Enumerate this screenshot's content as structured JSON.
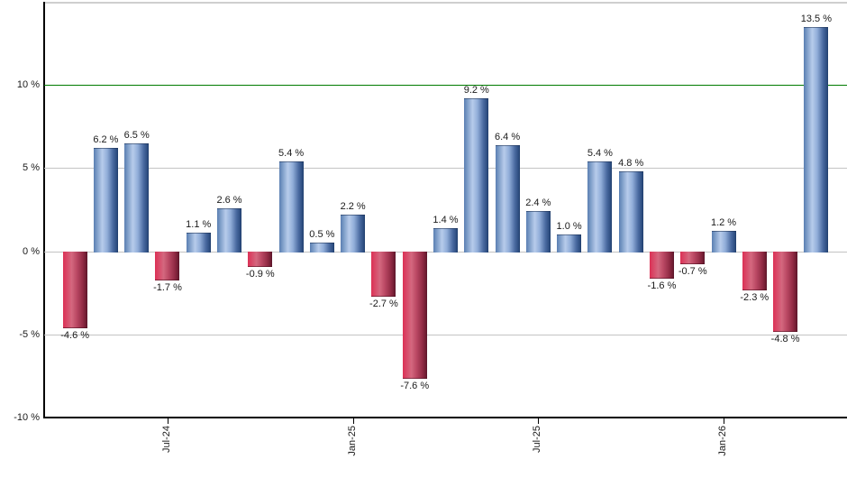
{
  "chart": {
    "background": "#ffffff",
    "colors": {
      "frame": "#cfcfcf",
      "axis": "#000000",
      "grid": "#c3c3c3",
      "reference_line": "#007a00",
      "positive_bar_base": "#6f94c4",
      "positive_bar_highlight": "#b7cceb",
      "positive_bar_dark": "#1d3a68",
      "negative_bar_base": "#c94a65",
      "negative_bar_highlight": "#d4687f",
      "negative_bar_dark": "#57142a",
      "label_text": "#1a1a1a"
    }
  },
  "chart_data": {
    "type": "bar",
    "title": "",
    "xlabel": "",
    "ylabel": "",
    "ylim": [
      -10,
      15
    ],
    "grid": "horizontal",
    "legend": "none",
    "values": [
      -4.6,
      6.2,
      6.5,
      -1.7,
      1.1,
      2.6,
      -0.9,
      5.4,
      0.5,
      2.2,
      -2.7,
      -7.6,
      1.4,
      9.2,
      6.4,
      2.4,
      1.0,
      5.4,
      4.8,
      -1.6,
      -0.7,
      1.2,
      -2.3,
      -4.8,
      13.5
    ],
    "labels": [
      "-4.6 %",
      "6.2 %",
      "6.5 %",
      "-1.7 %",
      "1.1 %",
      "2.6 %",
      "-0.9 %",
      "5.4 %",
      "0.5 %",
      "2.2 %",
      "-2.7 %",
      "-7.6 %",
      "1.4 %",
      "9.2 %",
      "6.4 %",
      "2.4 %",
      "1.0 %",
      "5.4 %",
      "4.8 %",
      "-1.6 %",
      "-0.7 %",
      "1.2 %",
      "-2.3 %",
      "-4.8 %",
      "13.5 %"
    ],
    "gridlines": [
      {
        "value": 10,
        "color": "#007a00"
      },
      {
        "value": 5,
        "color": "#c3c3c3"
      },
      {
        "value": 0,
        "color": "#c3c3c3"
      },
      {
        "value": -5,
        "color": "#c3c3c3"
      }
    ],
    "y_ticks": [
      {
        "value": 10,
        "label": "10 %"
      },
      {
        "value": 5,
        "label": "5 %"
      },
      {
        "value": 0,
        "label": "0 %"
      },
      {
        "value": -5,
        "label": "-5 %"
      },
      {
        "value": -10,
        "label": "-10 %"
      }
    ],
    "x_ticks": [
      {
        "index": 3,
        "label": "Jul-24"
      },
      {
        "index": 9,
        "label": "Jan-25"
      },
      {
        "index": 15,
        "label": "Jul-25"
      },
      {
        "index": 21,
        "label": "Jan-26"
      }
    ]
  }
}
